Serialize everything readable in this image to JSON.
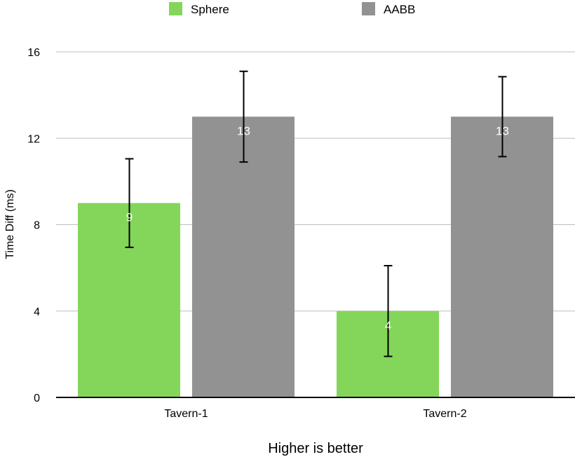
{
  "chart_data": {
    "type": "bar",
    "categories": [
      "Tavern-1",
      "Tavern-2"
    ],
    "series": [
      {
        "name": "Sphere",
        "color": "#83d65a",
        "values": [
          9,
          4
        ],
        "errors": [
          2.05,
          2.1
        ]
      },
      {
        "name": "AABB",
        "color": "#929292",
        "values": [
          13,
          13
        ],
        "errors": [
          2.1,
          1.85
        ]
      }
    ],
    "ylabel": "Time Diff (ms)",
    "xlabel": "Higher is better",
    "ylim": [
      0,
      16
    ],
    "yticks": [
      "0",
      "4",
      "8",
      "12",
      "16"
    ],
    "ytick_values": [
      0,
      4,
      8,
      12,
      16
    ],
    "data_labels": [
      [
        "9",
        "4"
      ],
      [
        "13",
        "13"
      ]
    ],
    "legend_position": "top",
    "grid": true
  }
}
